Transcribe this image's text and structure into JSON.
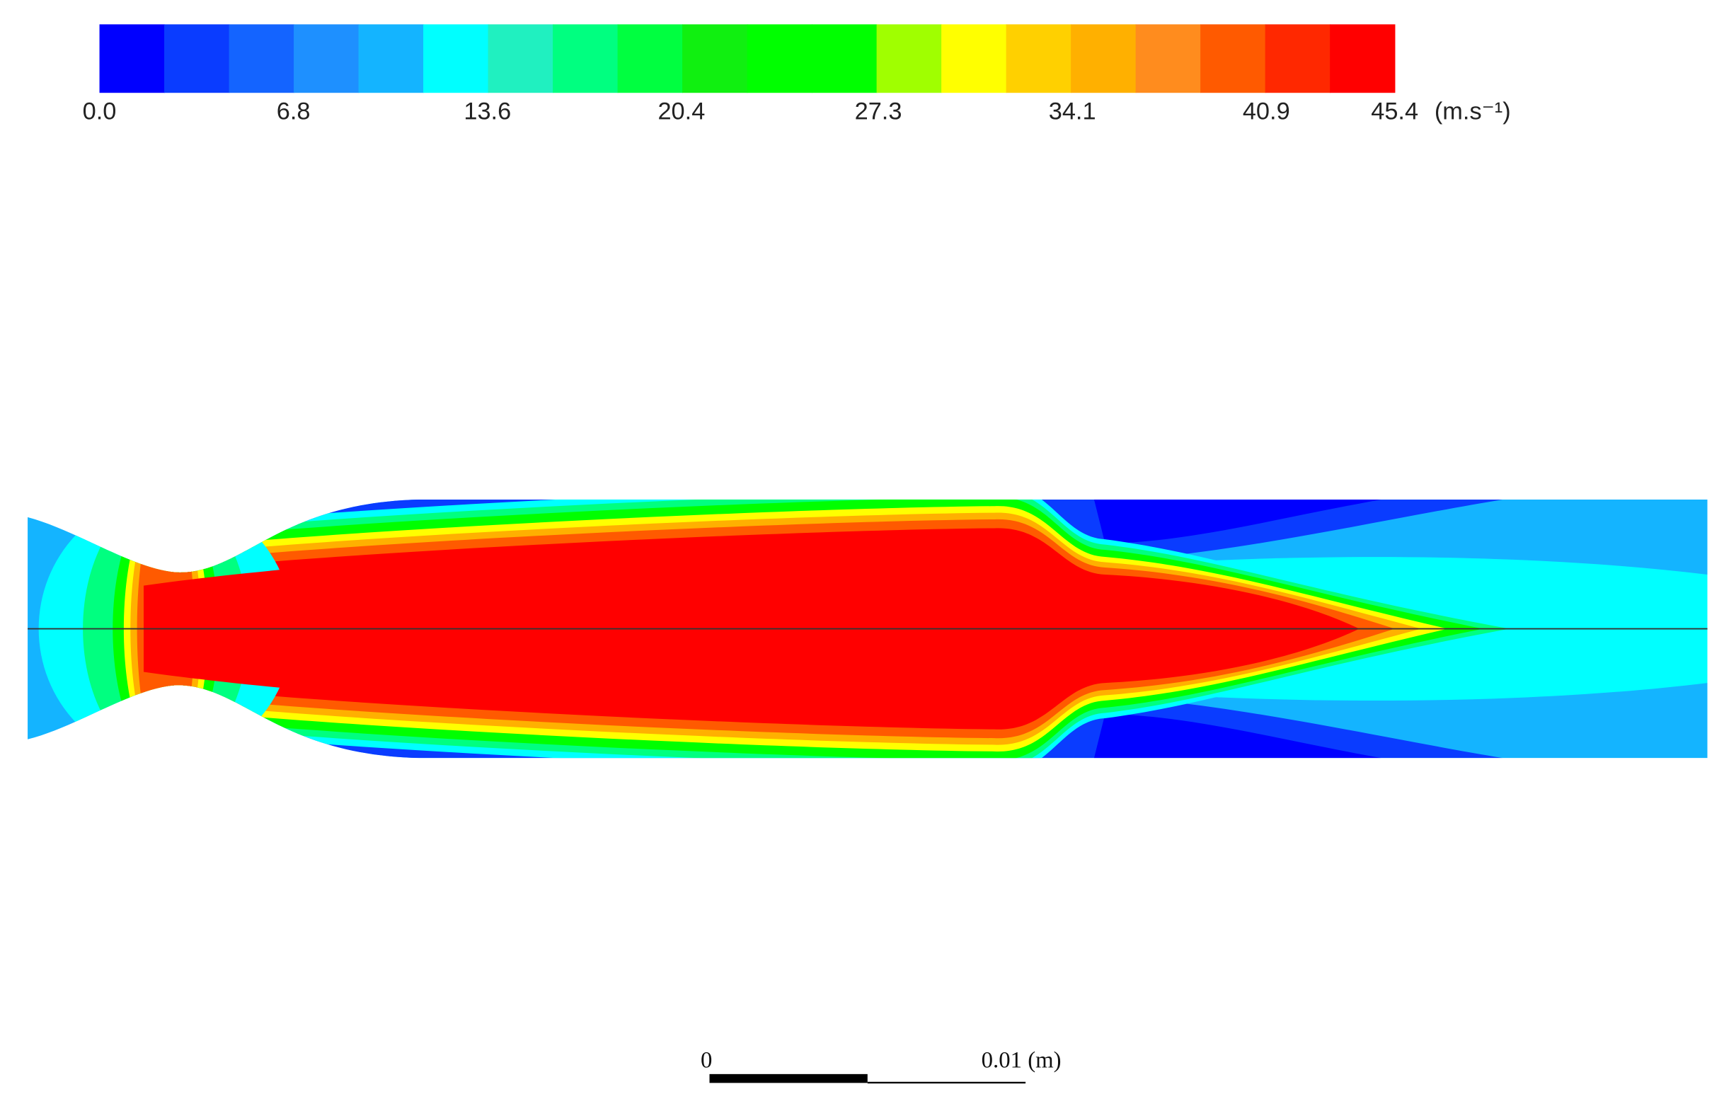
{
  "colorbar": {
    "range": [
      0,
      45.4
    ],
    "ticks": [
      {
        "value": 0,
        "label": "0.0"
      },
      {
        "value": 6.8,
        "label": "6.8"
      },
      {
        "value": 13.6,
        "label": "13.6"
      },
      {
        "value": 20.4,
        "label": "20.4"
      },
      {
        "value": 27.3,
        "label": "27.3"
      },
      {
        "value": 34.1,
        "label": "34.1"
      },
      {
        "value": 40.9,
        "label": "40.9"
      },
      {
        "value": 45.4,
        "label": "45.4"
      }
    ],
    "unit": "(m.s⁻¹)",
    "colors": [
      "#0000ff",
      "#0a3cff",
      "#1464ff",
      "#1e90ff",
      "#14b4ff",
      "#00ffff",
      "#20f0c0",
      "#00ff80",
      "#00ff40",
      "#10f010",
      "#00ff00",
      "#00ff00",
      "#a0ff00",
      "#ffff00",
      "#ffd000",
      "#ffb000",
      "#ff8c1e",
      "#ff5a00",
      "#ff2800",
      "#ff0000"
    ]
  },
  "scale_bar": {
    "start_label": "0",
    "end_label": "0.01 (m)"
  }
}
